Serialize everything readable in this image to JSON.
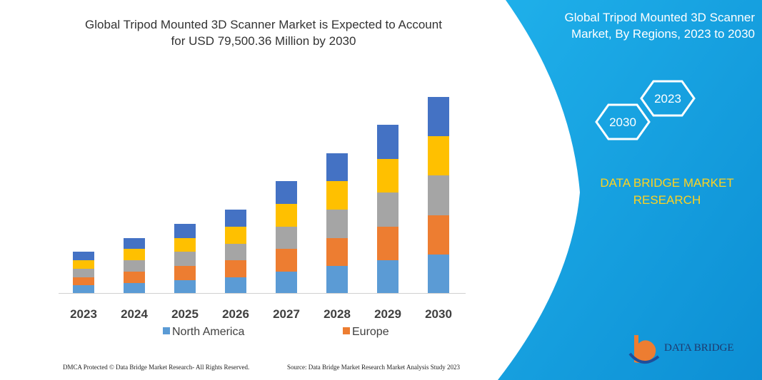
{
  "chart_data": {
    "type": "stacked-bar",
    "title_lines": [
      "Global Tripod Mounted 3D Scanner Market is Expected to Account",
      "for USD 79,500.36 Million by 2030"
    ],
    "categories": [
      "2023",
      "2024",
      "2025",
      "2026",
      "2027",
      "2028",
      "2029",
      "2030"
    ],
    "series": [
      {
        "name": "North America",
        "color": "#5b9bd5",
        "values": [
          11,
          14,
          18,
          22,
          30,
          38,
          46,
          54
        ]
      },
      {
        "name": "Europe",
        "color": "#ed7d31",
        "values": [
          11,
          16,
          20,
          24,
          32,
          39,
          47,
          55
        ]
      },
      {
        "color": "#a5a5a5",
        "values": [
          12,
          16,
          20,
          23,
          31,
          40,
          48,
          56
        ]
      },
      {
        "color": "#ffc000",
        "values": [
          12,
          16,
          19,
          24,
          32,
          40,
          47,
          55
        ]
      },
      {
        "color": "#4472c4",
        "values": [
          12,
          15,
          20,
          24,
          32,
          39,
          48,
          55
        ]
      }
    ]
  },
  "side_panel": {
    "title_lines": [
      "Global Tripod Mounted 3D Scanner",
      "Market, By Regions, 2023 to 2030"
    ],
    "hexagon_labels": [
      "2023",
      "2030"
    ],
    "brand_lines": [
      "DATA BRIDGE MARKET",
      "RESEARCH"
    ],
    "logo_text": "DATA BRIDGE"
  },
  "footer": {
    "left": "DMCA Protected © Data Bridge Market Research-  All Rights Reserved.",
    "right": "Source: Data Bridge Market Research  Market Analysis Study 2023"
  }
}
